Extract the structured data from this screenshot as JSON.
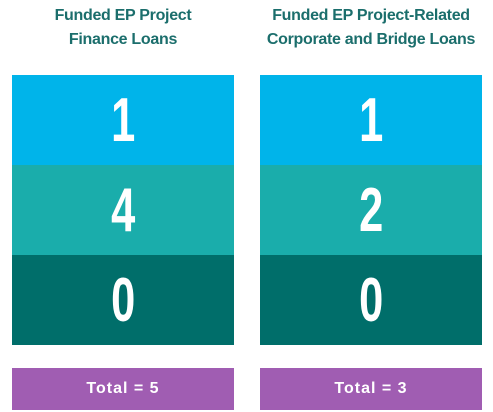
{
  "columns": [
    {
      "title_lines": [
        "Funded EP Project",
        "Finance Loans"
      ],
      "cells": [
        "1",
        "4",
        "0"
      ],
      "total": "Total = 5"
    },
    {
      "title_lines": [
        "Funded EP Project-Related",
        "Corporate and Bridge Loans"
      ],
      "cells": [
        "1",
        "2",
        "0"
      ],
      "total": "Total = 3"
    }
  ]
}
